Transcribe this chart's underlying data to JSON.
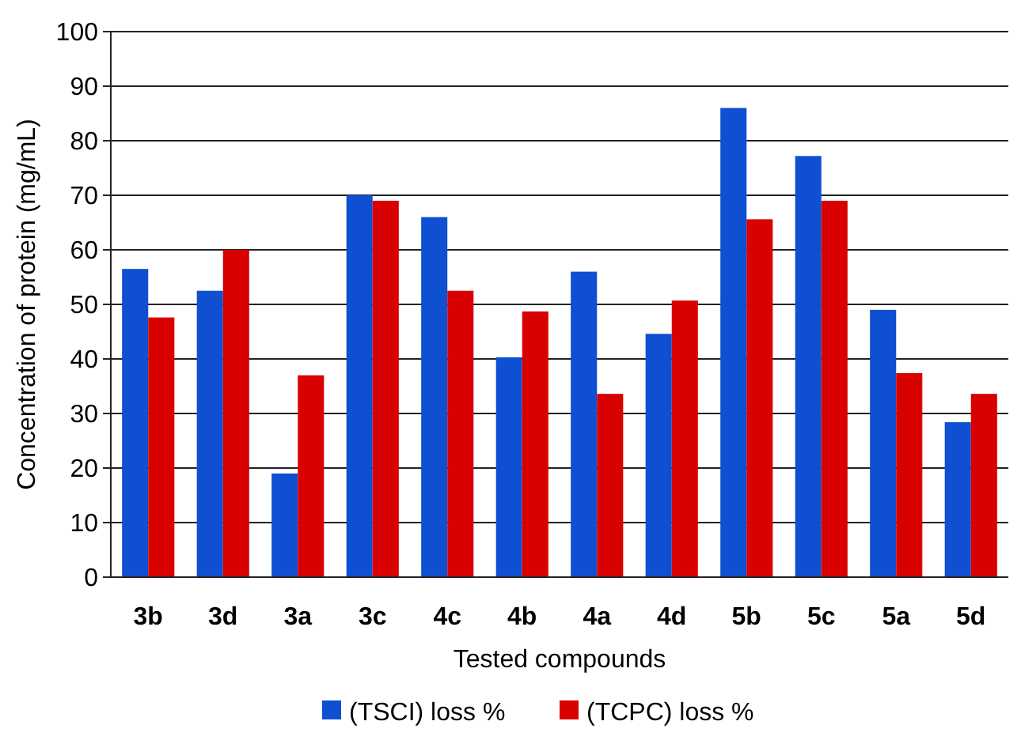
{
  "chart_data": {
    "type": "bar",
    "xlabel": "Tested compounds",
    "ylabel": "Concentration of protein (mg/mL)",
    "categories": [
      "3b",
      "3d",
      "3a",
      "3c",
      "4c",
      "4b",
      "4a",
      "4d",
      "5b",
      "5c",
      "5a",
      "5d"
    ],
    "series": [
      {
        "name": "(TSCI) loss %",
        "color": "#0f4fd2",
        "values": [
          56.5,
          52.5,
          19,
          70,
          66,
          40.3,
          56,
          44.6,
          86,
          77.2,
          49,
          28.4
        ]
      },
      {
        "name": "(TCPC) loss %",
        "color": "#d90000",
        "values": [
          47.6,
          60,
          37,
          69,
          52.5,
          48.7,
          33.6,
          50.7,
          65.6,
          69,
          37.4,
          33.6
        ]
      }
    ],
    "ylim": [
      0,
      100
    ],
    "yticks": [
      0,
      10,
      20,
      30,
      40,
      50,
      60,
      70,
      80,
      90,
      100
    ],
    "grid": "y",
    "legend": "bottom"
  }
}
